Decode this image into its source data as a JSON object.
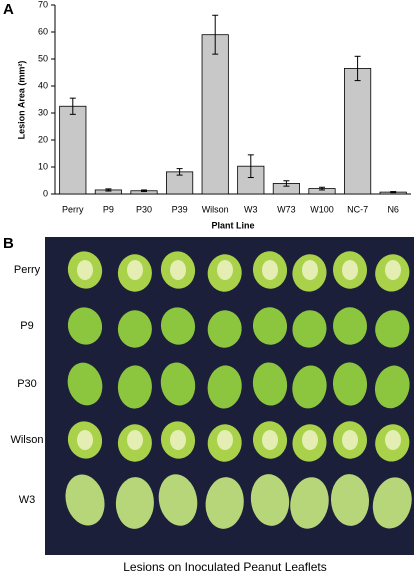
{
  "chart_data": {
    "type": "bar",
    "ylabel": "Lesion Area (mm²)",
    "xlabel": "Plant Line",
    "categories": [
      "Perry",
      "P9",
      "P30",
      "P39",
      "Wilson",
      "W3",
      "W73",
      "W100",
      "NC-7",
      "N6"
    ],
    "values": [
      32.5,
      1.5,
      1.2,
      8.2,
      59,
      10.3,
      3.9,
      2,
      46.5,
      0.7
    ],
    "errors": [
      3,
      0.4,
      0.3,
      1.2,
      7.2,
      4.2,
      1,
      0.5,
      4.5,
      0.2
    ],
    "color": "#c8c8c8",
    "ylim": [
      0,
      70
    ],
    "yticks": [
      0,
      10,
      20,
      30,
      40,
      50,
      60,
      70
    ],
    "grid": false
  },
  "panel_labels": [
    "A",
    "B"
  ],
  "photo": {
    "row_labels": [
      "Perry",
      "P9",
      "P30",
      "Wilson",
      "W3"
    ],
    "caption": "Lesions on Inoculated Peanut Leaflets"
  }
}
